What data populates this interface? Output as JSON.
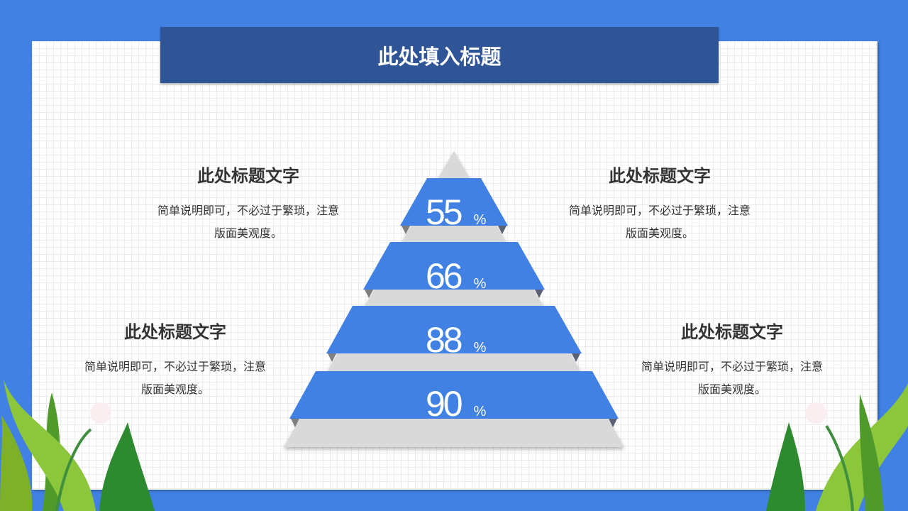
{
  "title": "此处填入标题",
  "blocks": [
    {
      "heading": "此处标题文字",
      "desc_line1": "简单说明即可，不必过于繁琐，注意",
      "desc_line2": "版面美观度。"
    },
    {
      "heading": "此处标题文字",
      "desc_line1": "简单说明即可，不必过于繁琐，注意",
      "desc_line2": "版面美观度。"
    },
    {
      "heading": "此处标题文字",
      "desc_line1": "简单说明即可，不必过于繁琐，注意",
      "desc_line2": "版面美观度。"
    },
    {
      "heading": "此处标题文字",
      "desc_line1": "简单说明即可，不必过于繁琐，注意",
      "desc_line2": "版面美观度。"
    }
  ],
  "pyramid": [
    {
      "value": "55",
      "unit": "%"
    },
    {
      "value": "66",
      "unit": "%"
    },
    {
      "value": "88",
      "unit": "%"
    },
    {
      "value": "90",
      "unit": "%"
    }
  ],
  "colors": {
    "background": "#4181e4",
    "title_bar": "#2f5597",
    "band": "#4181e4",
    "pyramid_gray": "#d9d9d9"
  }
}
